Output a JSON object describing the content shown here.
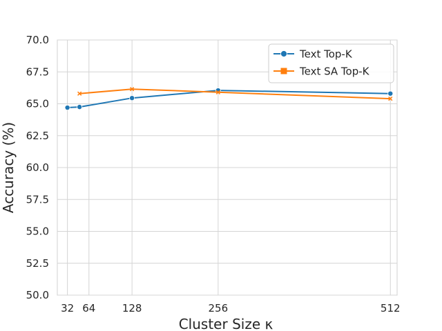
{
  "chart_data": {
    "type": "line",
    "xlabel": "Cluster Size κ",
    "ylabel": "Accuracy (%)",
    "xticks": [
      32,
      64,
      128,
      256,
      512
    ],
    "xlim": [
      17,
      522
    ],
    "ylim": [
      50.0,
      70.0
    ],
    "yticks": [
      50.0,
      52.5,
      55.0,
      57.5,
      60.0,
      62.5,
      65.0,
      67.5,
      70.0
    ],
    "grid": true,
    "legend_position": "top-right",
    "series": [
      {
        "name": "Text Top-K",
        "color": "#1f77b4",
        "marker": "circle",
        "x": [
          32,
          50,
          128,
          256,
          512
        ],
        "y": [
          64.7,
          64.75,
          65.45,
          66.05,
          65.8
        ]
      },
      {
        "name": "Text SA Top-K",
        "color": "#ff7f0e",
        "marker": "x",
        "x": [
          50,
          128,
          256,
          512
        ],
        "y": [
          65.8,
          66.15,
          65.9,
          65.4
        ]
      }
    ]
  }
}
